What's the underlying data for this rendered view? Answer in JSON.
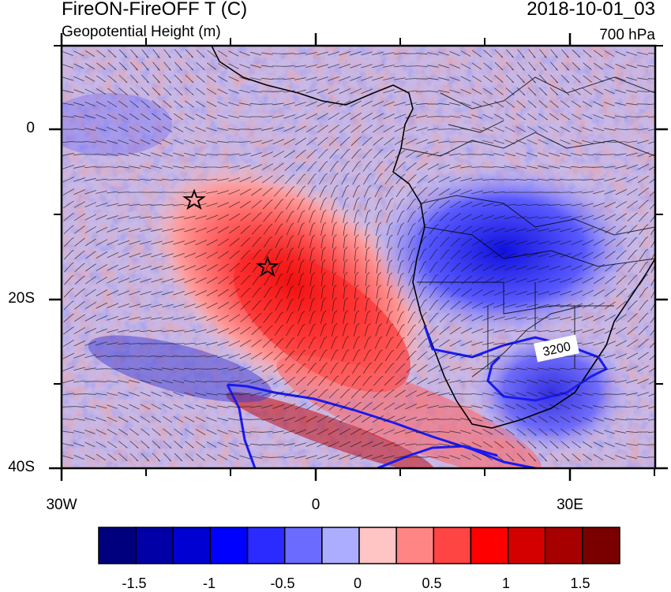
{
  "header": {
    "title_left": "FireON-FireOFF T (C)",
    "subtitle_left": "Geopotential Height (m)",
    "title_right": "2018-10-01_03",
    "subtitle_right": "700 hPa"
  },
  "axes": {
    "lat_labels": [
      "0",
      "20S",
      "40S"
    ],
    "lon_labels": [
      "30W",
      "0",
      "30E"
    ]
  },
  "contour_label": "3200",
  "colorbar": {
    "colors": [
      "#00007f",
      "#0000a6",
      "#0000d2",
      "#0000ff",
      "#2b2bff",
      "#6b6bff",
      "#adadff",
      "#ffc4c4",
      "#ff8585",
      "#ff4444",
      "#ff0000",
      "#d40000",
      "#a60000",
      "#7a0000"
    ],
    "labels": [
      "-1.5",
      "-1",
      "-0.5",
      "0",
      "0.5",
      "1",
      "1.5"
    ]
  },
  "markers": [
    "star-marker-1",
    "star-marker-2"
  ]
}
